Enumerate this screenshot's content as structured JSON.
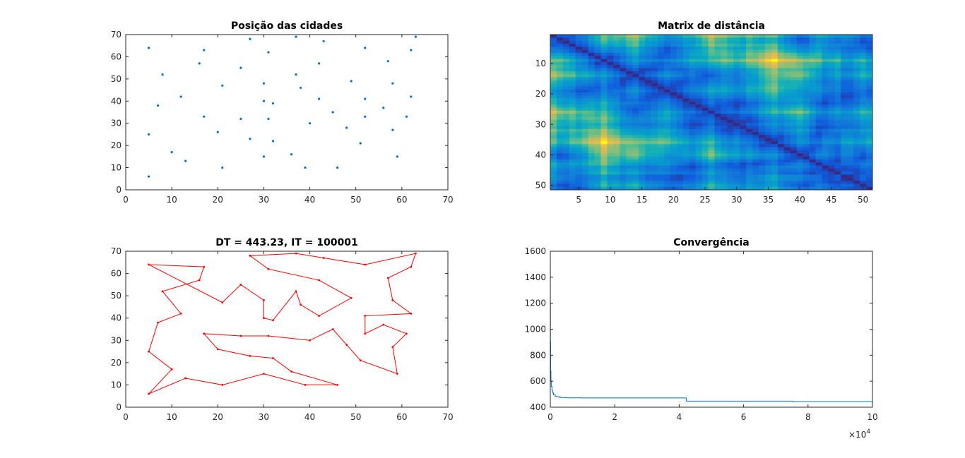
{
  "chart_data": [
    {
      "type": "scatter",
      "title": "Posição das cidades",
      "xlim": [
        0,
        70
      ],
      "ylim": [
        0,
        70
      ],
      "xticks": [
        "0",
        "10",
        "20",
        "30",
        "40",
        "50",
        "60",
        "70"
      ],
      "yticks": [
        "0",
        "10",
        "20",
        "30",
        "40",
        "50",
        "60",
        "70"
      ],
      "marker_color": "#0072BD",
      "grid": false,
      "points": [
        [
          5,
          64
        ],
        [
          17,
          63
        ],
        [
          16,
          57
        ],
        [
          8,
          52
        ],
        [
          12,
          42
        ],
        [
          7,
          38
        ],
        [
          5,
          25
        ],
        [
          10,
          17
        ],
        [
          5,
          6
        ],
        [
          13,
          13
        ],
        [
          21,
          10
        ],
        [
          30,
          15
        ],
        [
          39,
          10
        ],
        [
          46,
          10
        ],
        [
          36,
          16
        ],
        [
          32,
          22
        ],
        [
          27,
          23
        ],
        [
          20,
          26
        ],
        [
          17,
          33
        ],
        [
          25,
          32
        ],
        [
          31,
          32
        ],
        [
          40,
          30
        ],
        [
          45,
          35
        ],
        [
          48,
          28
        ],
        [
          51,
          21
        ],
        [
          59,
          15
        ],
        [
          58,
          27
        ],
        [
          61,
          33
        ],
        [
          56,
          37
        ],
        [
          52,
          33
        ],
        [
          52,
          41
        ],
        [
          62,
          42
        ],
        [
          58,
          48
        ],
        [
          57,
          58
        ],
        [
          62,
          63
        ],
        [
          63,
          69
        ],
        [
          52,
          64
        ],
        [
          43,
          67
        ],
        [
          37,
          69
        ],
        [
          27,
          68
        ],
        [
          31,
          62
        ],
        [
          42,
          57
        ],
        [
          49,
          49
        ],
        [
          42,
          41
        ],
        [
          38,
          46
        ],
        [
          37,
          52
        ],
        [
          32,
          39
        ],
        [
          30,
          40
        ],
        [
          30,
          48
        ],
        [
          25,
          55
        ],
        [
          21,
          47
        ]
      ]
    },
    {
      "type": "heatmap",
      "title": "Matrix de distância",
      "size": 51,
      "colormap": "parula",
      "xticks": [
        "5",
        "10",
        "15",
        "20",
        "25",
        "30",
        "35",
        "40",
        "45",
        "50"
      ],
      "yticks": [
        "10",
        "20",
        "30",
        "40",
        "50"
      ],
      "note_values": "Euclidean distances between the 51 cities (derived from city positions)"
    },
    {
      "type": "line",
      "title": "DT = 443.23, IT = 100001",
      "xlim": [
        0,
        70
      ],
      "ylim": [
        0,
        70
      ],
      "xticks": [
        "0",
        "10",
        "20",
        "30",
        "40",
        "50",
        "60",
        "70"
      ],
      "yticks": [
        "0",
        "10",
        "20",
        "30",
        "40",
        "50",
        "60",
        "70"
      ],
      "line_color": "#FF0000",
      "closed": true,
      "route": [
        [
          5,
          64
        ],
        [
          17,
          63
        ],
        [
          16,
          57
        ],
        [
          8,
          52
        ],
        [
          12,
          42
        ],
        [
          7,
          38
        ],
        [
          5,
          25
        ],
        [
          10,
          17
        ],
        [
          5,
          6
        ],
        [
          13,
          13
        ],
        [
          21,
          10
        ],
        [
          30,
          15
        ],
        [
          39,
          10
        ],
        [
          46,
          10
        ],
        [
          36,
          16
        ],
        [
          32,
          22
        ],
        [
          27,
          23
        ],
        [
          20,
          26
        ],
        [
          17,
          33
        ],
        [
          25,
          32
        ],
        [
          31,
          32
        ],
        [
          40,
          30
        ],
        [
          45,
          35
        ],
        [
          48,
          28
        ],
        [
          51,
          21
        ],
        [
          59,
          15
        ],
        [
          58,
          27
        ],
        [
          61,
          33
        ],
        [
          56,
          37
        ],
        [
          52,
          33
        ],
        [
          52,
          41
        ],
        [
          62,
          42
        ],
        [
          58,
          48
        ],
        [
          57,
          58
        ],
        [
          62,
          63
        ],
        [
          63,
          69
        ],
        [
          52,
          64
        ],
        [
          43,
          67
        ],
        [
          37,
          69
        ],
        [
          27,
          68
        ],
        [
          31,
          62
        ],
        [
          42,
          57
        ],
        [
          49,
          49
        ],
        [
          42,
          41
        ],
        [
          38,
          46
        ],
        [
          37,
          52
        ],
        [
          32,
          39
        ],
        [
          30,
          40
        ],
        [
          30,
          48
        ],
        [
          25,
          55
        ],
        [
          21,
          47
        ]
      ]
    },
    {
      "type": "line",
      "title": "Convergência",
      "xlim": [
        0,
        100000
      ],
      "ylim": [
        400,
        1600
      ],
      "xticks": [
        "0",
        "2",
        "4",
        "6",
        "8",
        "10"
      ],
      "x_multiplier": "×10",
      "x_multiplier_exp": "4",
      "yticks": [
        "400",
        "600",
        "800",
        "1000",
        "1200",
        "1400",
        "1600"
      ],
      "line_color": "#0072BD",
      "series": [
        {
          "x": [
            0,
            10,
            40,
            100,
            200,
            300,
            500,
            700,
            1000,
            1500,
            2000,
            3000,
            5000,
            10000,
            20000,
            42000,
            42200,
            60000,
            75000,
            75200,
            100000
          ],
          "y": [
            1480,
            1200,
            900,
            680,
            600,
            560,
            530,
            510,
            495,
            485,
            480,
            475,
            472,
            471,
            471,
            471,
            447,
            447,
            447,
            443,
            443
          ]
        }
      ]
    }
  ]
}
